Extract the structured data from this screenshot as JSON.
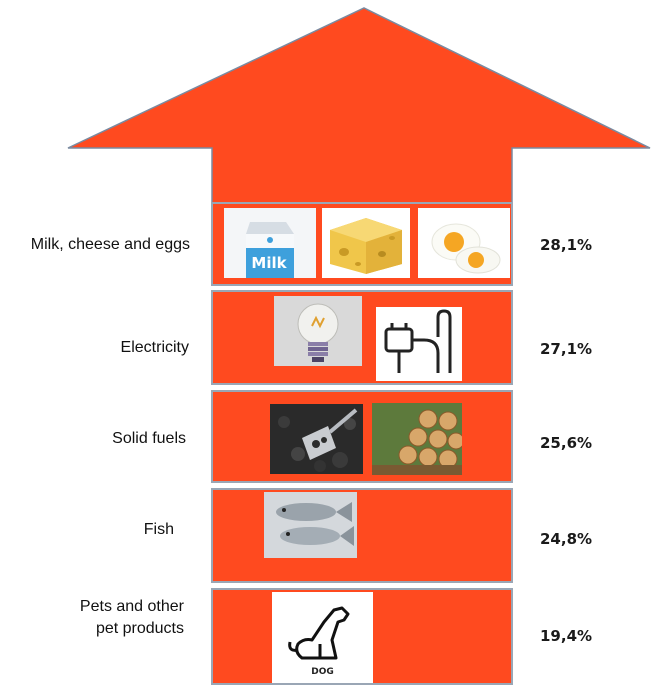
{
  "categories": [
    {
      "label": "Milk, cheese and eggs",
      "percent": "28,1%",
      "icons": [
        "milk-carton-icon",
        "cheese-icon",
        "boiled-egg-icon"
      ],
      "milk_text": "Milk"
    },
    {
      "label": "Electricity",
      "percent": "27,1%",
      "icons": [
        "light-bulb-icon",
        "power-plug-icon"
      ]
    },
    {
      "label": "Solid fuels",
      "percent": "25,6%",
      "icons": [
        "coal-shovel-icon",
        "firewood-logs-icon"
      ]
    },
    {
      "label": "Fish",
      "percent": "24,8%",
      "icons": [
        "fish-icon"
      ]
    },
    {
      "label_line1": "Pets and other",
      "label_line2": "pet products",
      "percent": "19,4%",
      "icons": [
        "dog-icon"
      ],
      "dog_caption": "DOG"
    }
  ],
  "colors": {
    "arrow": "#ff4a1f",
    "arrow_stroke": "#7a8aa0",
    "band_border": "#9aa6b5"
  }
}
